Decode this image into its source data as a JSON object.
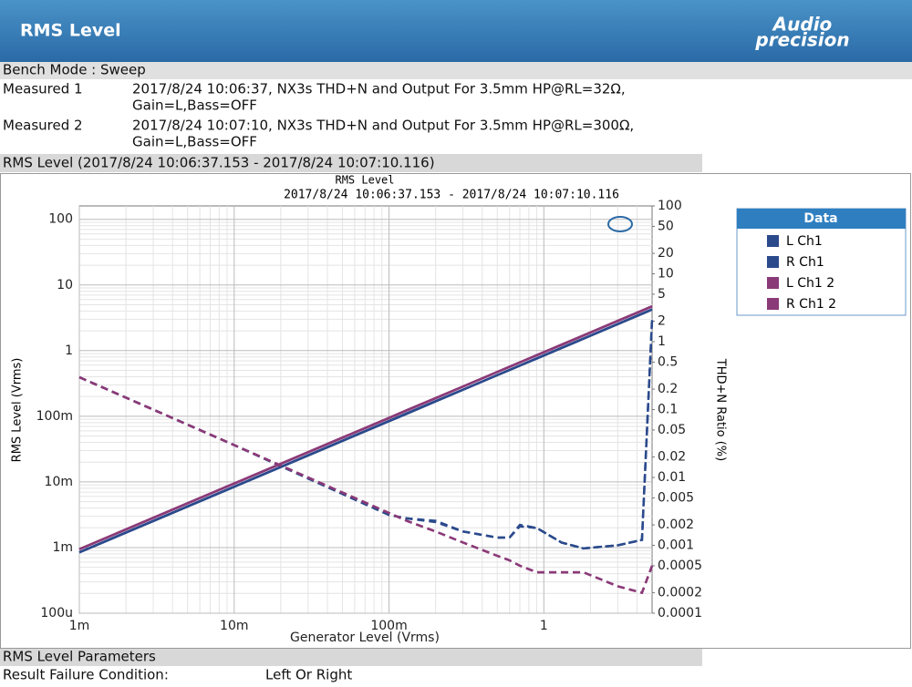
{
  "header": {
    "title": "RMS Level",
    "logo_line1": "Audio",
    "logo_line2": "precision"
  },
  "bench_mode": "Bench Mode : Sweep",
  "measurements": [
    {
      "label": "Measured 1",
      "line1": "2017/8/24 10:06:37, NX3s THD+N and Output For 3.5mm HP@RL=32Ω,",
      "line2": "Gain=L,Bass=OFF"
    },
    {
      "label": "Measured 2",
      "line1": "2017/8/24 10:07:10, NX3s THD+N and Output For 3.5mm HP@RL=300Ω,",
      "line2": "Gain=L,Bass=OFF"
    }
  ],
  "section_title": "RMS Level (2017/8/24 10:06:37.153 - 2017/8/24 10:07:10.116)",
  "chart_data": {
    "type": "line",
    "title": "RMS Level",
    "subtitle": "2017/8/24 10:06:37.153 - 2017/8/24 10:07:10.116",
    "xlabel": "Generator Level (Vrms)",
    "ylabel": "RMS Level (Vrms)",
    "y2label": "THD+N Ratio (%)",
    "legend_title": "Data",
    "legend": "right",
    "log_x": true,
    "log_y": true,
    "log_y2": true,
    "grid": true,
    "xlim": [
      0.001,
      5
    ],
    "ylim": [
      0.0001,
      160
    ],
    "y2lim": [
      0.0001,
      100
    ],
    "xticks": [
      {
        "value": 0.001,
        "label": "1m"
      },
      {
        "value": 0.01,
        "label": "10m"
      },
      {
        "value": 0.1,
        "label": "100m"
      },
      1
    ],
    "yticks": [
      {
        "value": 0.0001,
        "label": "100u"
      },
      {
        "value": 0.001,
        "label": "1m"
      },
      {
        "value": 0.01,
        "label": "10m"
      },
      {
        "value": 0.1,
        "label": "100m"
      },
      1,
      10,
      100
    ],
    "y2ticks": [
      100,
      50,
      20,
      10,
      5,
      2,
      1,
      0.5,
      0.2,
      0.1,
      0.05,
      0.02,
      0.01,
      0.005,
      0.002,
      0.001,
      0.0005,
      0.0002,
      0.0001
    ],
    "series": [
      {
        "name": "L Ch1",
        "color": "#2b4a8c",
        "x": [
          0.001,
          0.01,
          0.1,
          0.13,
          0.2,
          0.3,
          0.5,
          0.6,
          0.7,
          0.9,
          1.3,
          1.8,
          3,
          4.3,
          5
        ],
        "values": [
          0.00085,
          0.0085,
          0.085,
          0.1105,
          0.17,
          0.255,
          0.425,
          0.51,
          0.595,
          0.765,
          1.105,
          1.53,
          2.55,
          3.655,
          4.25
        ],
        "y2_values": [
          0.3,
          0.03,
          0.0028,
          0.0025,
          0.0023,
          0.0016,
          0.0013,
          0.0013,
          0.002,
          0.0018,
          0.0011,
          0.0009,
          0.001,
          0.0012,
          2.2
        ]
      },
      {
        "name": "R Ch1",
        "color": "#2b4a8c",
        "x": [
          0.001,
          0.01,
          0.1,
          0.13,
          0.2,
          0.3,
          0.5,
          0.6,
          0.7,
          0.9,
          1.3,
          1.8,
          3,
          4.3,
          5
        ],
        "values": [
          0.00084,
          0.0084,
          0.084,
          0.109,
          0.168,
          0.252,
          0.42,
          0.504,
          0.588,
          0.756,
          1.09,
          1.51,
          2.52,
          3.61,
          4.2
        ],
        "y2_values": [
          0.3,
          0.03,
          0.0028,
          0.0025,
          0.0022,
          0.0016,
          0.0013,
          0.0013,
          0.0019,
          0.0018,
          0.0011,
          0.0009,
          0.001,
          0.0012,
          2.1
        ]
      },
      {
        "name": "L Ch1 2",
        "color": "#8b3a78",
        "x": [
          0.001,
          0.01,
          0.1,
          0.13,
          0.2,
          0.3,
          0.5,
          0.6,
          0.7,
          0.9,
          1.3,
          1.8,
          3,
          4.3,
          5
        ],
        "values": [
          0.00095,
          0.0095,
          0.095,
          0.1235,
          0.19,
          0.285,
          0.475,
          0.57,
          0.665,
          0.855,
          1.235,
          1.71,
          2.85,
          4.085,
          4.75
        ],
        "y2_values": [
          0.3,
          0.03,
          0.003,
          0.0023,
          0.0016,
          0.0011,
          0.0007,
          0.0006,
          0.0005,
          0.0004,
          0.0004,
          0.0004,
          0.00025,
          0.0002,
          0.0005
        ]
      },
      {
        "name": "R Ch1 2",
        "color": "#8b3a78",
        "x": [
          0.001,
          0.01,
          0.1,
          0.13,
          0.2,
          0.3,
          0.5,
          0.6,
          0.7,
          0.9,
          1.3,
          1.8,
          3,
          4.3,
          5
        ],
        "values": [
          0.00094,
          0.0094,
          0.094,
          0.122,
          0.188,
          0.282,
          0.47,
          0.564,
          0.658,
          0.846,
          1.22,
          1.69,
          2.82,
          4.04,
          4.7
        ],
        "y2_values": [
          0.3,
          0.03,
          0.003,
          0.0023,
          0.0016,
          0.0011,
          0.0007,
          0.0006,
          0.0005,
          0.0004,
          0.0004,
          0.0004,
          0.00025,
          0.0002,
          0.0005
        ]
      }
    ]
  },
  "parameters": {
    "title": "RMS Level Parameters",
    "rows": [
      [
        "Result Failure Condition:",
        "Left Or Right"
      ]
    ]
  }
}
